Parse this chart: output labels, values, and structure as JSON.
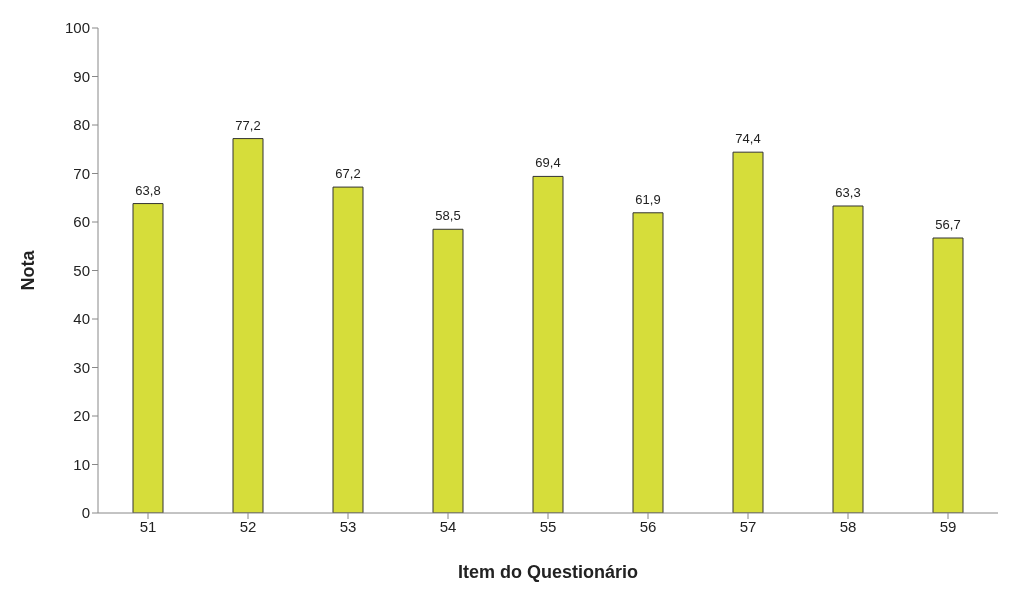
{
  "chart_data": {
    "type": "bar",
    "xlabel": "Item do Questionário",
    "ylabel": "Nota",
    "categories": [
      "51",
      "52",
      "53",
      "54",
      "55",
      "56",
      "57",
      "58",
      "59"
    ],
    "values": [
      63.8,
      77.2,
      67.2,
      58.5,
      69.4,
      61.9,
      74.4,
      63.3,
      56.7
    ],
    "value_labels": [
      "63,8",
      "77,2",
      "67,2",
      "58,5",
      "69,4",
      "61,9",
      "74,4",
      "63,3",
      "56,7"
    ],
    "color": "#d6dd3a",
    "ylim": [
      0,
      100
    ],
    "yticks": [
      0,
      10,
      20,
      30,
      40,
      50,
      60,
      70,
      80,
      90,
      100
    ],
    "grid": false
  }
}
